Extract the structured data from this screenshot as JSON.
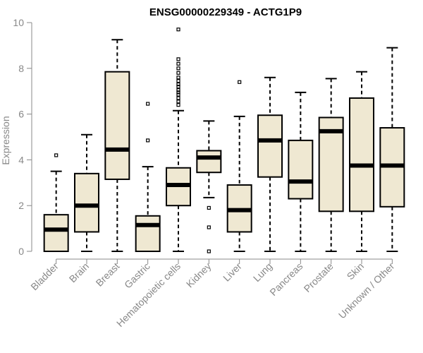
{
  "chart_data": {
    "type": "boxplot",
    "title": "ENSG00000229349 - ACTG1P9",
    "xlabel": "",
    "ylabel": "Expression",
    "ylim": [
      0,
      10
    ],
    "yticks": [
      0,
      2,
      4,
      6,
      8,
      10
    ],
    "colors": {
      "box_fill": "#efe8d2",
      "stroke": "#000000",
      "axis": "#888888"
    },
    "categories": [
      "Bladder",
      "Brain",
      "Breast",
      "Gastric",
      "Hematopoietic cells",
      "Kidney",
      "Liver",
      "Lung",
      "Pancreas",
      "Prostate",
      "Skin",
      "Unknown / Other"
    ],
    "boxes": [
      {
        "min": 0,
        "q1": 0,
        "median": 0.95,
        "q3": 1.6,
        "max": 3.5,
        "outliers": [
          4.2
        ]
      },
      {
        "min": 0,
        "q1": 0.85,
        "median": 2.0,
        "q3": 3.4,
        "max": 5.1,
        "outliers": []
      },
      {
        "min": 0,
        "q1": 3.15,
        "median": 4.45,
        "q3": 7.85,
        "max": 9.25,
        "outliers": []
      },
      {
        "min": 0,
        "q1": 0,
        "median": 1.15,
        "q3": 1.55,
        "max": 3.7,
        "outliers": [
          4.85,
          6.45
        ]
      },
      {
        "min": 0,
        "q1": 2.0,
        "median": 2.9,
        "q3": 3.65,
        "max": 6.15,
        "outliers": [
          6.4,
          6.55,
          6.7,
          6.85,
          6.95,
          7.05,
          7.2,
          7.3,
          7.45,
          7.6,
          7.8,
          8.0,
          8.2,
          8.4,
          9.7
        ]
      },
      {
        "min": 2.35,
        "q1": 3.45,
        "median": 4.1,
        "q3": 4.4,
        "max": 5.7,
        "outliers": [
          0,
          1.05,
          1.9
        ]
      },
      {
        "min": 0,
        "q1": 0.85,
        "median": 1.8,
        "q3": 2.9,
        "max": 5.9,
        "outliers": [
          7.4
        ]
      },
      {
        "min": 0,
        "q1": 3.25,
        "median": 4.85,
        "q3": 5.95,
        "max": 7.6,
        "outliers": []
      },
      {
        "min": 0,
        "q1": 2.3,
        "median": 3.05,
        "q3": 4.85,
        "max": 6.95,
        "outliers": []
      },
      {
        "min": 0,
        "q1": 1.75,
        "median": 5.25,
        "q3": 5.85,
        "max": 7.55,
        "outliers": []
      },
      {
        "min": 0,
        "q1": 1.75,
        "median": 3.75,
        "q3": 6.7,
        "max": 7.85,
        "outliers": []
      },
      {
        "min": 0,
        "q1": 1.95,
        "median": 3.75,
        "q3": 5.4,
        "max": 8.9,
        "outliers": []
      }
    ]
  }
}
